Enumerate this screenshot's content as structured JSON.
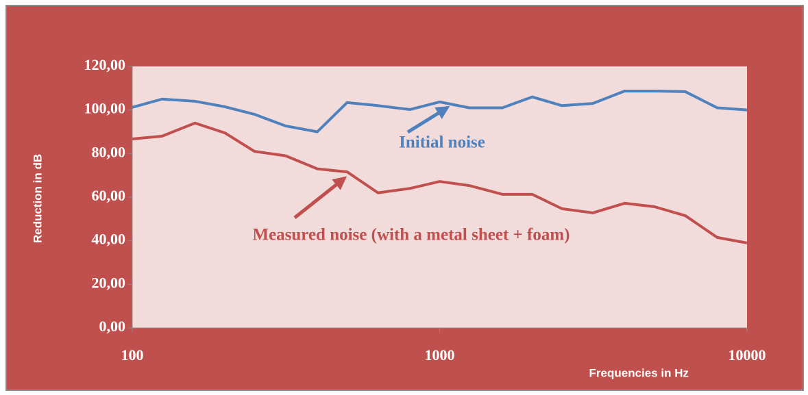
{
  "chart_data": {
    "type": "line",
    "x_label": "Frequencies in Hz",
    "y_label": "Reduction in dB",
    "x": [
      100,
      125,
      160,
      200,
      250,
      315,
      400,
      500,
      630,
      800,
      1000,
      1250,
      1600,
      2000,
      2500,
      3150,
      4000,
      5000,
      6300,
      8000,
      10000
    ],
    "series": [
      {
        "name": "Initial noise",
        "color": "#4f81bd",
        "values": [
          101.2,
          105,
          104,
          101.5,
          98,
          92.7,
          90,
          103.4,
          102,
          100.2,
          103.7,
          101,
          101,
          106,
          102,
          103,
          108.7,
          108.7,
          108.4,
          101,
          100
        ]
      },
      {
        "name": "Measured noise (with a metal sheet + foam)",
        "color": "#c0504d",
        "values": [
          86.7,
          88,
          94,
          89.5,
          81,
          79,
          73,
          71.6,
          62,
          64,
          67.2,
          65.3,
          61.3,
          61.3,
          54.7,
          52.8,
          57.2,
          55.6,
          51.5,
          41.5,
          39
        ]
      }
    ],
    "xscale": "log",
    "xlim": [
      100,
      10000
    ],
    "xticks": [
      100,
      1000,
      10000
    ],
    "ylim": [
      0,
      120
    ],
    "yticks": [
      {
        "value": 0,
        "label": "0,00"
      },
      {
        "value": 20,
        "label": "20,00"
      },
      {
        "value": 40,
        "label": "40,00"
      },
      {
        "value": 60,
        "label": "60,00"
      },
      {
        "value": 80,
        "label": "80,00"
      },
      {
        "value": 100,
        "label": "100,00"
      },
      {
        "value": 120,
        "label": "120,00"
      }
    ]
  }
}
